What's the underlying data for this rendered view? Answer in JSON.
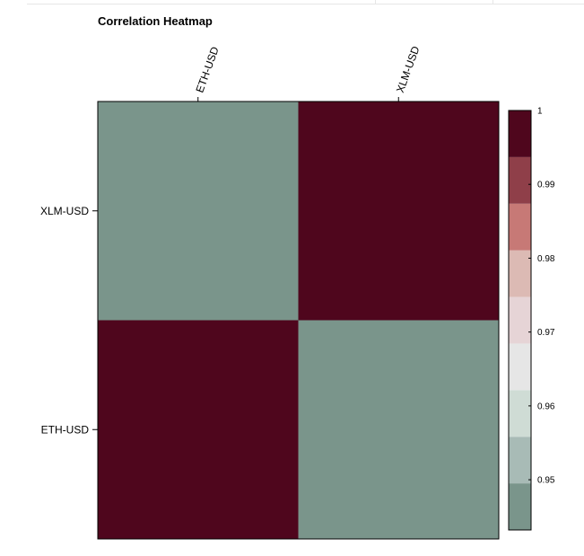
{
  "chart_data": {
    "type": "heatmap",
    "title": "Correlation Heatmap",
    "x_categories": [
      "ETH-USD",
      "XLM-USD"
    ],
    "y_categories": [
      "XLM-USD",
      "ETH-USD"
    ],
    "values": [
      [
        0.9432,
        1
      ],
      [
        1,
        0.9432
      ]
    ],
    "colorbar": {
      "min": 0.9432,
      "max": 1,
      "ticks": [
        0.95,
        0.96,
        0.97,
        0.98,
        0.99,
        1
      ],
      "tick_labels": [
        "0.95",
        "0.96",
        "0.97",
        "0.98",
        "0.99",
        "1"
      ],
      "colors": [
        "#7a958b",
        "#a8bbb6",
        "#cfdcd5",
        "#e6e6e6",
        "#e6d4d6",
        "#dcbab4",
        "#c77976",
        "#8f3f49",
        "#4f061d"
      ]
    }
  }
}
